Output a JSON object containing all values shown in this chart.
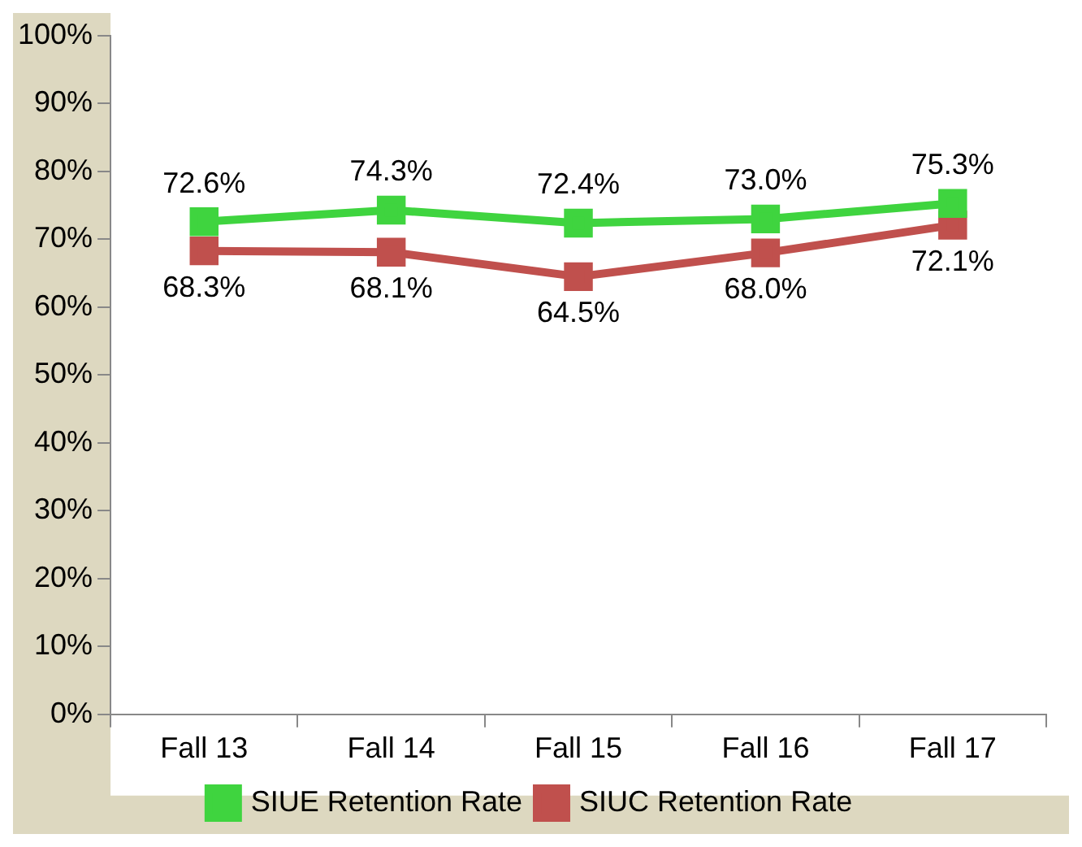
{
  "chart_data": {
    "type": "line",
    "categories": [
      "Fall 13",
      "Fall 14",
      "Fall 15",
      "Fall 16",
      "Fall 17"
    ],
    "series": [
      {
        "name": "SIUE Retention Rate",
        "color": "#3fd43f",
        "values": [
          72.6,
          74.3,
          72.4,
          73.0,
          75.3
        ],
        "value_labels": [
          "72.6%",
          "74.3%",
          "72.4%",
          "73.0%",
          "75.3%"
        ]
      },
      {
        "name": "SIUC Retention Rate",
        "color": "#c0504d",
        "values": [
          68.3,
          68.1,
          64.5,
          68.0,
          72.1
        ],
        "value_labels": [
          "68.3%",
          "68.1%",
          "64.5%",
          "68.0%",
          "72.1%"
        ]
      }
    ],
    "ylim": [
      0,
      100
    ],
    "yticks": [
      {
        "value": 0,
        "label": "0%"
      },
      {
        "value": 10,
        "label": "10%"
      },
      {
        "value": 20,
        "label": "20%"
      },
      {
        "value": 30,
        "label": "30%"
      },
      {
        "value": 40,
        "label": "40%"
      },
      {
        "value": 50,
        "label": "50%"
      },
      {
        "value": 60,
        "label": "60%"
      },
      {
        "value": 70,
        "label": "70%"
      },
      {
        "value": 80,
        "label": "80%"
      },
      {
        "value": 90,
        "label": "90%"
      },
      {
        "value": 100,
        "label": "100%"
      }
    ],
    "grid": false,
    "legend": "bottom",
    "marker": "square",
    "line_style": "solid"
  }
}
